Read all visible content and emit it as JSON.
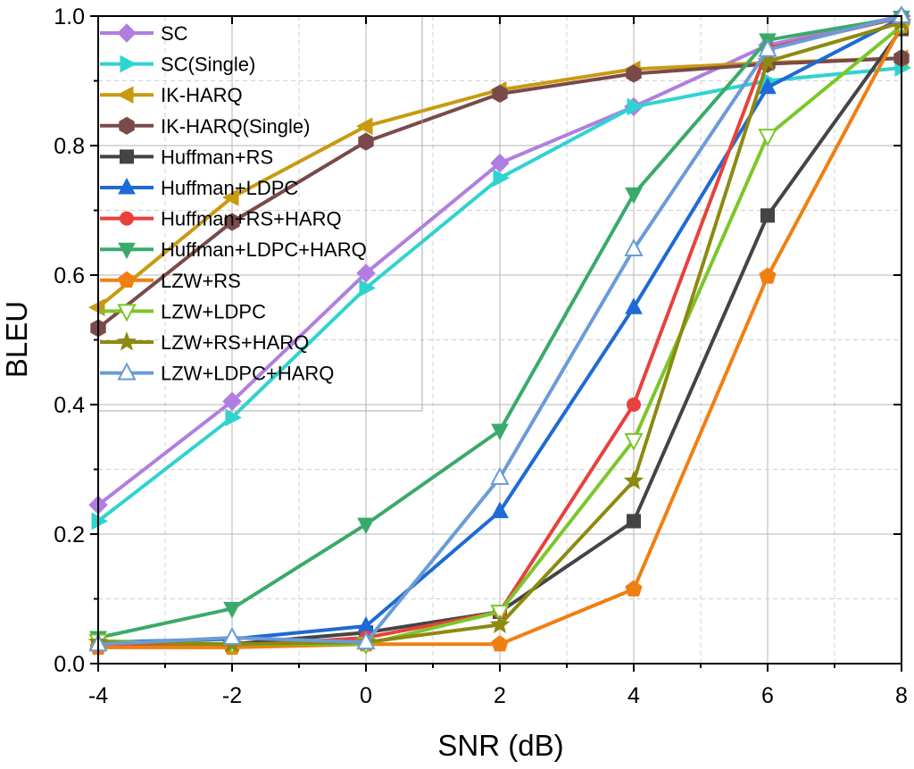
{
  "chart_data": {
    "type": "line",
    "title": "",
    "xlabel": "SNR (dB)",
    "ylabel": "BLEU",
    "x": [
      -4,
      -2,
      0,
      2,
      4,
      6,
      8
    ],
    "xlim": [
      -4,
      8
    ],
    "ylim": [
      0.0,
      1.0
    ],
    "x_ticks": [
      -4,
      -2,
      0,
      2,
      4,
      6,
      8
    ],
    "y_ticks": [
      0.0,
      0.2,
      0.4,
      0.6,
      0.8,
      1.0
    ],
    "x_tick_labels": [
      "-4",
      "-2",
      "0",
      "2",
      "4",
      "6",
      "8"
    ],
    "y_tick_labels": [
      "0.0",
      "0.2",
      "0.4",
      "0.6",
      "0.8",
      "1.0"
    ],
    "grid": true,
    "legend_position": "top-left",
    "series": [
      {
        "name": "SC",
        "color": "#b07ee0",
        "marker": "diamond",
        "filled": true,
        "values": [
          0.245,
          0.405,
          0.603,
          0.773,
          0.86,
          0.955,
          1.0
        ]
      },
      {
        "name": "SC(Single)",
        "color": "#2fd3d0",
        "marker": "triangle-right",
        "filled": true,
        "values": [
          0.22,
          0.38,
          0.58,
          0.75,
          0.86,
          0.9,
          0.92
        ]
      },
      {
        "name": "IK-HARQ",
        "color": "#c99a10",
        "marker": "triangle-left",
        "filled": true,
        "values": [
          0.55,
          0.72,
          0.83,
          0.886,
          0.918,
          0.928,
          0.935
        ]
      },
      {
        "name": "IK-HARQ(Single)",
        "color": "#7a4a4a",
        "marker": "hexagon",
        "filled": true,
        "values": [
          0.518,
          0.682,
          0.806,
          0.88,
          0.911,
          0.926,
          0.935
        ]
      },
      {
        "name": "Huffman+RS",
        "color": "#444444",
        "marker": "square",
        "filled": true,
        "values": [
          0.03,
          0.03,
          0.048,
          0.08,
          0.22,
          0.692,
          0.98
        ]
      },
      {
        "name": "Huffman+LDPC",
        "color": "#1e6ad6",
        "marker": "triangle-up",
        "filled": true,
        "values": [
          0.033,
          0.038,
          0.058,
          0.235,
          0.55,
          0.89,
          0.997
        ]
      },
      {
        "name": "Huffman+RS+HARQ",
        "color": "#e8413c",
        "marker": "circle",
        "filled": true,
        "values": [
          0.03,
          0.027,
          0.04,
          0.08,
          0.4,
          0.95,
          0.998
        ]
      },
      {
        "name": "Huffman+LDPC+HARQ",
        "color": "#3aaa6a",
        "marker": "triangle-down",
        "filled": true,
        "values": [
          0.04,
          0.085,
          0.215,
          0.36,
          0.725,
          0.963,
          0.998
        ]
      },
      {
        "name": "LZW+RS",
        "color": "#f07f12",
        "marker": "pentagon",
        "filled": true,
        "values": [
          0.025,
          0.025,
          0.03,
          0.03,
          0.115,
          0.598,
          0.985
        ]
      },
      {
        "name": "LZW+LDPC",
        "color": "#7cc62a",
        "marker": "triangle-down",
        "filled": false,
        "values": [
          0.035,
          0.03,
          0.03,
          0.08,
          0.345,
          0.815,
          0.985
        ]
      },
      {
        "name": "LZW+RS+HARQ",
        "color": "#8c8a10",
        "marker": "star",
        "filled": true,
        "values": [
          0.033,
          0.03,
          0.033,
          0.06,
          0.282,
          0.93,
          0.99
        ]
      },
      {
        "name": "LZW+LDPC+HARQ",
        "color": "#6b9bd8",
        "marker": "triangle-up",
        "filled": false,
        "values": [
          0.03,
          0.04,
          0.033,
          0.287,
          0.64,
          0.948,
          1.0
        ]
      }
    ]
  }
}
